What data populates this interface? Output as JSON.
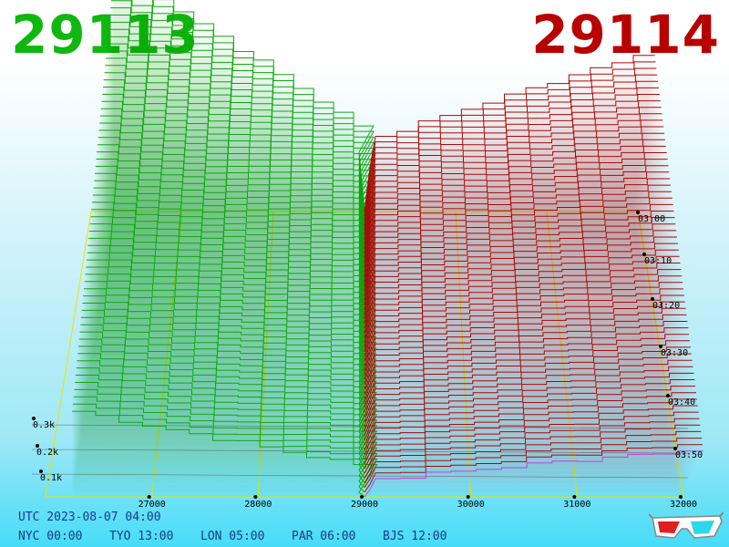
{
  "header": {
    "bid_price": "29113",
    "ask_price": "29114",
    "bid_color": "#0fb80f",
    "ask_color": "#b80000"
  },
  "chart_data": {
    "type": "area",
    "view": "3d-depth-history",
    "x_axis": {
      "ticks": [
        27000,
        28000,
        29000,
        30000,
        31000,
        32000
      ],
      "range": [
        26000,
        32000
      ]
    },
    "z_axis_volume": {
      "ticks": [
        "0.1k",
        "0.2k",
        "0.3k"
      ]
    },
    "y_axis_time": {
      "ticks": [
        "03:00",
        "03:10",
        "03:20",
        "03:30",
        "03:40",
        "03:50"
      ]
    },
    "series": [
      {
        "side": "bid",
        "color": "#0fb80f"
      },
      {
        "side": "ask",
        "color": "#b80000"
      }
    ],
    "grid": true
  },
  "footer": {
    "utc": "UTC 2023-08-07 04:00",
    "timezones": [
      {
        "label": "NYC 00:00"
      },
      {
        "label": "TYO 13:00"
      },
      {
        "label": "LON 05:00"
      },
      {
        "label": "PAR 06:00"
      },
      {
        "label": "BJS 12:00"
      }
    ]
  },
  "icons": {
    "glasses": "3d-glasses-icon"
  }
}
